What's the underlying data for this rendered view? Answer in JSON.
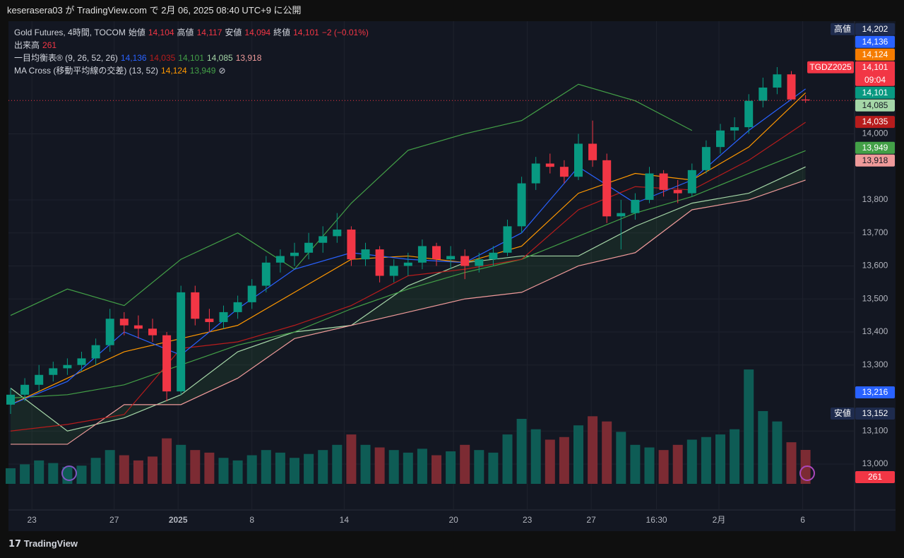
{
  "header": "keserasera03 が TradingView.com で 2月 06, 2025 08:40 UTC+9 に公開",
  "legend": [
    {
      "parts": [
        {
          "text": "Gold Futures, 4時間, TOCOM",
          "color": "#d1d4dc"
        },
        {
          "text": "始値",
          "color": "#d1d4dc"
        },
        {
          "text": "14,104",
          "color": "#f23645"
        },
        {
          "text": "高値",
          "color": "#d1d4dc"
        },
        {
          "text": "14,117",
          "color": "#f23645"
        },
        {
          "text": "安値",
          "color": "#d1d4dc"
        },
        {
          "text": "14,094",
          "color": "#f23645"
        },
        {
          "text": "終値",
          "color": "#d1d4dc"
        },
        {
          "text": "14,101",
          "color": "#f23645"
        },
        {
          "text": "−2 (−0.01%)",
          "color": "#f23645"
        }
      ]
    },
    {
      "parts": [
        {
          "text": "出来高",
          "color": "#d1d4dc"
        },
        {
          "text": "261",
          "color": "#f23645"
        }
      ]
    },
    {
      "parts": [
        {
          "text": "一目均衡表® (9, 26, 52, 26)",
          "color": "#d1d4dc"
        },
        {
          "text": "14,136",
          "color": "#2962ff"
        },
        {
          "text": "14,035",
          "color": "#b71c1c"
        },
        {
          "text": "14,101",
          "color": "#43a047"
        },
        {
          "text": "14,085",
          "color": "#a5d6a7"
        },
        {
          "text": "13,918",
          "color": "#ef9a9a"
        }
      ]
    },
    {
      "parts": [
        {
          "text": "MA Cross (移動平均線の交差) (13, 52)",
          "color": "#d1d4dc"
        },
        {
          "text": "14,124",
          "color": "#ff9800"
        },
        {
          "text": "13,949",
          "color": "#43a047"
        },
        {
          "text": "⊘",
          "color": "#d1d4dc"
        }
      ]
    }
  ],
  "chart_data": {
    "type": "candlestick",
    "up_color": "#089981",
    "down_color": "#f23645",
    "volume_up_color": "#0e5c55",
    "volume_down_color": "#7c2b33",
    "open": [
      13180,
      13210,
      13240,
      13270,
      13290,
      13300,
      13320,
      13360,
      13440,
      13420,
      13410,
      13390,
      13220,
      13520,
      13440,
      13430,
      13460,
      13490,
      13540,
      13610,
      13630,
      13640,
      13670,
      13690,
      13710,
      13620,
      13650,
      13570,
      13600,
      13610,
      13660,
      13620,
      13630,
      13600,
      13620,
      13640,
      13720,
      13850,
      13910,
      13900,
      13870,
      13970,
      13920,
      13750,
      13760,
      13800,
      13880,
      13830,
      13820,
      13890,
      13960,
      14010,
      14020,
      14100,
      14140,
      14180,
      14104
    ],
    "high": [
      13230,
      13260,
      13300,
      13310,
      13320,
      13340,
      13380,
      13470,
      13460,
      13450,
      13440,
      13400,
      13540,
      13540,
      13470,
      13480,
      13510,
      13560,
      13630,
      13650,
      13670,
      13700,
      13720,
      13760,
      13720,
      13670,
      13660,
      13620,
      13640,
      13680,
      13670,
      13660,
      13650,
      13640,
      13660,
      13740,
      13870,
      13930,
      13940,
      13920,
      14000,
      14040,
      13940,
      13800,
      13820,
      13900,
      13890,
      13860,
      13910,
      13980,
      14030,
      14050,
      14120,
      14170,
      14202,
      14190,
      14117
    ],
    "low": [
      13152,
      13190,
      13220,
      13250,
      13270,
      13280,
      13300,
      13340,
      13390,
      13380,
      13370,
      13190,
      13210,
      13420,
      13400,
      13410,
      13440,
      13470,
      13520,
      13580,
      13600,
      13620,
      13640,
      13670,
      13600,
      13600,
      13550,
      13550,
      13570,
      13590,
      13600,
      13590,
      13560,
      13580,
      13600,
      13630,
      13700,
      13830,
      13880,
      13850,
      13860,
      13900,
      13730,
      13650,
      13740,
      13790,
      13810,
      13790,
      13810,
      13880,
      13940,
      13980,
      14000,
      14080,
      14120,
      14110,
      14094
    ],
    "close": [
      13210,
      13240,
      13270,
      13290,
      13300,
      13320,
      13360,
      13440,
      13420,
      13410,
      13390,
      13220,
      13520,
      13440,
      13430,
      13460,
      13490,
      13540,
      13610,
      13630,
      13640,
      13670,
      13690,
      13710,
      13620,
      13650,
      13570,
      13600,
      13610,
      13660,
      13620,
      13630,
      13600,
      13620,
      13640,
      13720,
      13850,
      13910,
      13900,
      13870,
      13970,
      13920,
      13750,
      13760,
      13800,
      13880,
      13830,
      13820,
      13890,
      13960,
      14010,
      14020,
      14100,
      14140,
      14180,
      14104,
      14101
    ],
    "volume": [
      120,
      150,
      180,
      160,
      130,
      140,
      200,
      260,
      220,
      180,
      210,
      350,
      300,
      260,
      240,
      200,
      180,
      220,
      260,
      240,
      200,
      230,
      260,
      300,
      380,
      300,
      280,
      260,
      240,
      270,
      220,
      250,
      300,
      260,
      240,
      380,
      500,
      420,
      340,
      360,
      450,
      520,
      480,
      400,
      300,
      280,
      260,
      300,
      340,
      360,
      380,
      420,
      880,
      560,
      480,
      320,
      261
    ],
    "volume_lim": [
      0,
      924
    ],
    "line_index": [
      0,
      4,
      8,
      12,
      16,
      20,
      24,
      28,
      32,
      36,
      40,
      44,
      48,
      52,
      56
    ],
    "lines": [
      {
        "color": "#43a047",
        "values": [
          13450,
          13530,
          13480,
          13620,
          13700,
          13590,
          13790,
          13950,
          14000,
          14040,
          14150,
          14100,
          14010,
          null,
          null
        ]
      },
      {
        "color": "#43a047",
        "values": [
          13200,
          13210,
          13240,
          13300,
          13360,
          13400,
          13470,
          13530,
          13580,
          13620,
          13690,
          13760,
          13810,
          13880,
          13949
        ]
      },
      {
        "color": "#ff9800",
        "values": [
          13180,
          13260,
          13340,
          13380,
          13420,
          13520,
          13620,
          13630,
          13610,
          13660,
          13820,
          13880,
          13860,
          13960,
          14124
        ]
      },
      {
        "color": "#b71c1c",
        "values": [
          13100,
          13120,
          13150,
          13350,
          13370,
          13420,
          13480,
          13570,
          13590,
          13620,
          13770,
          13840,
          13830,
          13920,
          14035
        ]
      },
      {
        "color": "#2962ff",
        "values": [
          13180,
          13250,
          13400,
          13330,
          13470,
          13590,
          13640,
          13620,
          13610,
          13700,
          13900,
          13790,
          13860,
          14010,
          14136
        ]
      }
    ],
    "cloud": {
      "fill": "rgba(67,160,71,0.12)",
      "span_a": {
        "color": "#a5d6a7",
        "values": [
          13230,
          13100,
          13140,
          13210,
          13340,
          13400,
          13420,
          13540,
          13610,
          13630,
          13630,
          13720,
          13790,
          13820,
          13900
        ]
      },
      "span_b": {
        "color": "#ef9a9a",
        "values": [
          13060,
          13060,
          13180,
          13180,
          13260,
          13380,
          13420,
          13460,
          13500,
          13520,
          13600,
          13640,
          13770,
          13800,
          13860
        ]
      }
    },
    "xticks": [
      {
        "value": 1.5,
        "label": "23"
      },
      {
        "value": 7.3,
        "label": "27"
      },
      {
        "value": 11.8,
        "label": "2025"
      },
      {
        "value": 17,
        "label": "8"
      },
      {
        "value": 23.5,
        "label": "14"
      },
      {
        "value": 31.2,
        "label": "20"
      },
      {
        "value": 36.4,
        "label": "23"
      },
      {
        "value": 40.9,
        "label": "27"
      },
      {
        "value": 45.5,
        "label": "16:30"
      },
      {
        "value": 49.9,
        "label": "2月"
      },
      {
        "value": 55.8,
        "label": "6"
      }
    ],
    "ylim": [
      12861,
      14341
    ],
    "yticks": [
      {
        "value": 13000,
        "label": "13,000"
      },
      {
        "value": 13100,
        "label": "13,100"
      },
      {
        "value": 13300,
        "label": "13,300"
      },
      {
        "value": 13400,
        "label": "13,400"
      },
      {
        "value": 13500,
        "label": "13,500"
      },
      {
        "value": 13600,
        "label": "13,600"
      },
      {
        "value": 13700,
        "label": "13,700"
      },
      {
        "value": 13800,
        "label": "13,800"
      },
      {
        "value": 14000,
        "label": "14,000"
      }
    ],
    "grid": true,
    "price_tags": [
      {
        "prefix": "高値",
        "value": 14202,
        "label": "14,202",
        "color": "#1e2b4d",
        "text_color": "#ffffff"
      },
      {
        "value": 14136,
        "label": "14,136",
        "color": "#2962ff",
        "text_color": "#ffffff"
      },
      {
        "value": 14124,
        "label": "14,124",
        "color": "#f57c00",
        "text_color": "#ffffff"
      },
      {
        "name_tag": "TGDZ2025",
        "value": 14101,
        "label": "14,101",
        "sub": "09:04",
        "color": "#f23645",
        "text_color": "#ffffff"
      },
      {
        "value": 14101,
        "label": "14,101",
        "color": "#089981",
        "text_color": "#ffffff"
      },
      {
        "value": 14085,
        "label": "14,085",
        "color": "#a5d6a7",
        "text_color": "#131722"
      },
      {
        "value": 14035,
        "label": "14,035",
        "color": "#b71c1c",
        "text_color": "#ffffff"
      },
      {
        "value": 13949,
        "label": "13,949",
        "color": "#43a047",
        "text_color": "#ffffff"
      },
      {
        "value": 13918,
        "label": "13,918",
        "color": "#ef9a9a",
        "text_color": "#131722"
      },
      {
        "value": 13216,
        "label": "13,216",
        "color": "#2962ff",
        "text_color": "#ffffff"
      },
      {
        "prefix": "安値",
        "value": 13152,
        "label": "13,152",
        "color": "#1e2b4d",
        "text_color": "#ffffff"
      },
      {
        "axis": "volume",
        "value": 261,
        "label": "261",
        "color": "#f23645",
        "text_color": "#ffffff"
      }
    ]
  },
  "footer": "TradingView"
}
